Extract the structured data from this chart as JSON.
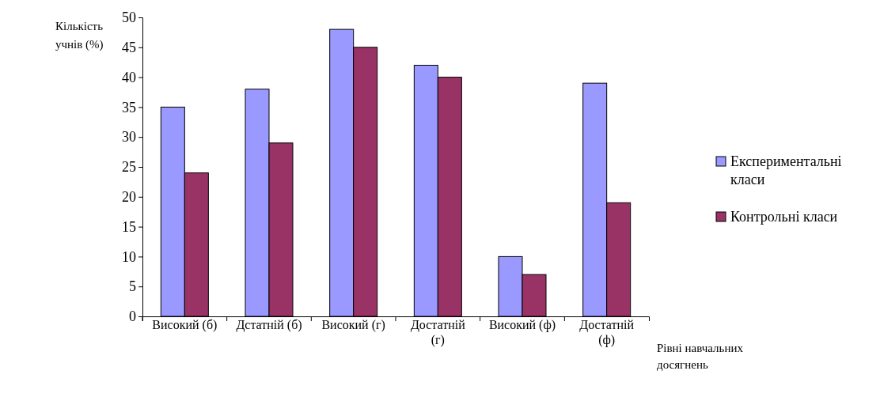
{
  "chart_data": {
    "type": "bar",
    "ylabel": "Кількість учнів (%)",
    "xlabel": "Рівні навчальних досягнень",
    "categories": [
      "Високий (б)",
      "Дстатній (б)",
      "Високий (г)",
      "Достатній (г)",
      "Високий (ф)",
      "Достатній (ф)"
    ],
    "series": [
      {
        "name": "Експериментальні класи",
        "color": "#9999ff",
        "values": [
          35,
          38,
          48,
          42,
          10,
          39
        ]
      },
      {
        "name": "Контрольні класи",
        "color": "#993366",
        "values": [
          24,
          29,
          45,
          40,
          7,
          19
        ]
      }
    ],
    "ylim": [
      0,
      50
    ],
    "yticks": [
      0,
      5,
      10,
      15,
      20,
      25,
      30,
      35,
      40,
      45,
      50
    ],
    "grid": false,
    "legend": "right"
  }
}
